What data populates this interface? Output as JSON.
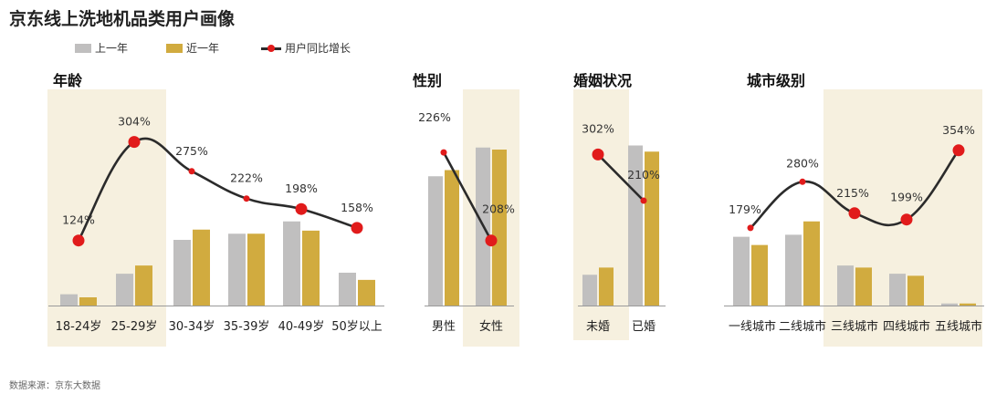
{
  "title": "京东线上洗地机品类用户画像",
  "source": "数据来源：京东大数据",
  "colors": {
    "last_year": "#c0bfbf",
    "recent_year": "#d1ab3f",
    "line": "#2b2b2b",
    "marker": "#e11b1b",
    "highlight": "#f6f0df"
  },
  "legend": {
    "last_year": "上一年",
    "recent_year": "近一年",
    "growth": "用户同比增长"
  },
  "chart_data": [
    {
      "type": "bar",
      "title": "年龄",
      "categories": [
        "18-24岁",
        "25-29岁",
        "30-34岁",
        "35-39岁",
        "40-49岁",
        "50岁以上"
      ],
      "series": [
        {
          "name": "上一年",
          "values": [
            5.5,
            15.5,
            32,
            35,
            41,
            16
          ]
        },
        {
          "name": "近一年",
          "values": [
            4,
            19.5,
            37,
            35,
            36.5,
            12.5
          ]
        },
        {
          "name": "用户同比增长",
          "values": [
            "124%",
            "304%",
            "275%",
            "222%",
            "198%",
            "158%"
          ],
          "plot": [
            31,
            78,
            64,
            51,
            46,
            37
          ]
        }
      ],
      "highlighted": [
        "18-24岁",
        "25-29岁"
      ]
    },
    {
      "type": "bar",
      "title": "性别",
      "categories": [
        "男性",
        "女性"
      ],
      "series": [
        {
          "name": "上一年",
          "values": [
            63,
            77
          ]
        },
        {
          "name": "近一年",
          "values": [
            66,
            76
          ]
        },
        {
          "name": "用户同比增长",
          "values": [
            "226%",
            "208%"
          ],
          "plot": [
            73,
            31
          ]
        }
      ],
      "highlighted": [
        "女性"
      ]
    },
    {
      "type": "bar",
      "title": "婚姻状况",
      "categories": [
        "未婚",
        "已婚"
      ],
      "series": [
        {
          "name": "上一年",
          "values": [
            15,
            78
          ]
        },
        {
          "name": "近一年",
          "values": [
            18.5,
            75
          ]
        },
        {
          "name": "用户同比增长",
          "values": [
            "302%",
            "210%"
          ],
          "plot": [
            72,
            50
          ]
        }
      ],
      "highlighted": [
        "未婚"
      ]
    },
    {
      "type": "bar",
      "title": "城市级别",
      "categories": [
        "一线城市",
        "二线城市",
        "三线城市",
        "四线城市",
        "五线城市"
      ],
      "series": [
        {
          "name": "上一年",
          "values": [
            33.5,
            34.5,
            19.5,
            15.5,
            1
          ]
        },
        {
          "name": "近一年",
          "values": [
            29.5,
            41,
            18.5,
            14.5,
            1
          ]
        },
        {
          "name": "用户同比增长",
          "values": [
            "179%",
            "280%",
            "215%",
            "199%",
            "354%"
          ],
          "plot": [
            37,
            59,
            44,
            41,
            74
          ]
        }
      ],
      "highlighted": [
        "三线城市",
        "四线城市",
        "五线城市"
      ]
    }
  ]
}
